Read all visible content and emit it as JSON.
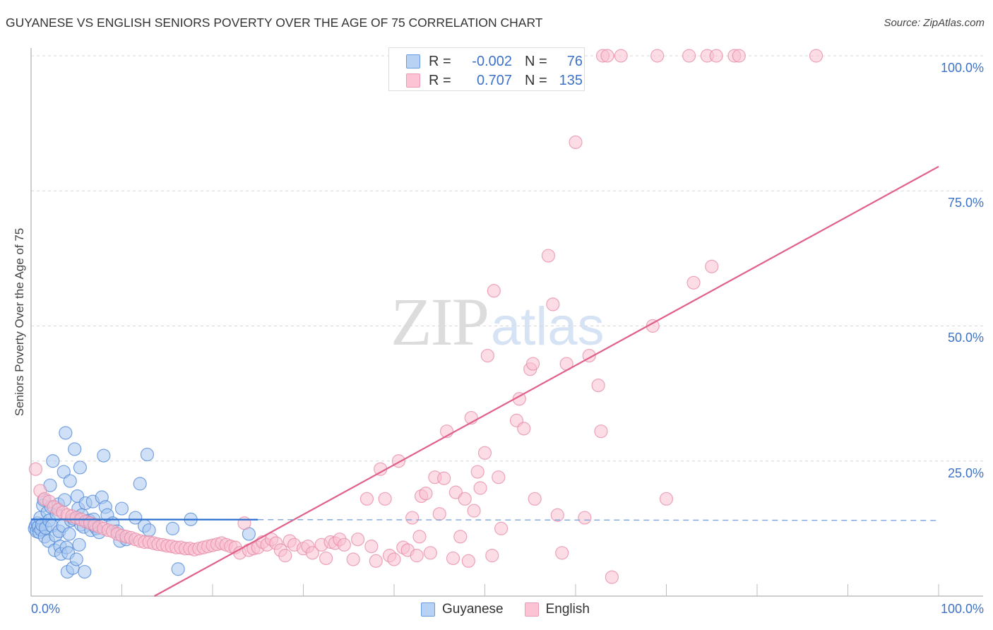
{
  "header": {
    "title": "GUYANESE VS ENGLISH SENIORS POVERTY OVER THE AGE OF 75 CORRELATION CHART",
    "source": "Source: ZipAtlas.com"
  },
  "axes": {
    "ylabel": "Seniors Poverty Over the Age of 75",
    "y_ticks": [
      "100.0%",
      "75.0%",
      "50.0%",
      "25.0%"
    ],
    "x_min_label": "0.0%",
    "x_max_label": "100.0%"
  },
  "legend_top": {
    "rows": [
      {
        "series": "Guyanese",
        "r_label": "R =",
        "r_value": "-0.002",
        "n_label": "N =",
        "n_value": "76"
      },
      {
        "series": "English",
        "r_label": "R =",
        "r_value": "0.707",
        "n_label": "N =",
        "n_value": "135"
      }
    ]
  },
  "legend_bottom": {
    "items": [
      {
        "label": "Guyanese"
      },
      {
        "label": "English"
      }
    ]
  },
  "watermark": {
    "zip": "ZIP",
    "atlas": "atlas"
  },
  "colors": {
    "guyanese_fill": "#a9c8f0",
    "guyanese_stroke": "#4f87d6",
    "guyanese_line": "#2b6fcf",
    "english_fill": "#f9c0d0",
    "english_stroke": "#e58aa6",
    "english_line": "#e0608a",
    "tick_label": "#3d72c9"
  },
  "chart_data": {
    "type": "scatter",
    "title": "GUYANESE VS ENGLISH SENIORS POVERTY OVER THE AGE OF 75 CORRELATION CHART",
    "xlabel": "",
    "ylabel": "Seniors Poverty Over the Age of 75",
    "xlim": [
      0,
      100
    ],
    "ylim": [
      0,
      100
    ],
    "x_tick_labels": [
      "0.0%",
      "100.0%"
    ],
    "y_tick_labels": [
      "25.0%",
      "50.0%",
      "75.0%",
      "100.0%"
    ],
    "grid": "horizontal dashed at 25/50/75/100",
    "legend_position": "top-center and bottom-center",
    "series": [
      {
        "name": "Guyanese",
        "R": -0.002,
        "N": 76,
        "trend": {
          "x0": 0,
          "y0": 14.2,
          "x1": 100,
          "y1": 14.0,
          "solid_until_x": 25
        },
        "points": [
          [
            0.4,
            12.5
          ],
          [
            0.5,
            13.0
          ],
          [
            0.6,
            12.0
          ],
          [
            0.7,
            13.5
          ],
          [
            0.8,
            12.8
          ],
          [
            0.9,
            11.8
          ],
          [
            1.0,
            14.5
          ],
          [
            1.1,
            12.3
          ],
          [
            1.2,
            13.2
          ],
          [
            1.3,
            16.8
          ],
          [
            1.4,
            17.8
          ],
          [
            1.5,
            11.0
          ],
          [
            1.6,
            12.6
          ],
          [
            1.8,
            15.5
          ],
          [
            1.9,
            10.2
          ],
          [
            2.0,
            14.0
          ],
          [
            2.1,
            20.5
          ],
          [
            2.2,
            16.5
          ],
          [
            2.3,
            13.0
          ],
          [
            2.4,
            25.0
          ],
          [
            2.6,
            8.5
          ],
          [
            2.7,
            11.2
          ],
          [
            2.8,
            15.2
          ],
          [
            3.0,
            17.0
          ],
          [
            3.1,
            12.0
          ],
          [
            3.2,
            9.2
          ],
          [
            3.3,
            7.8
          ],
          [
            3.5,
            13.0
          ],
          [
            3.6,
            23.0
          ],
          [
            3.7,
            17.8
          ],
          [
            3.8,
            30.2
          ],
          [
            3.9,
            9.0
          ],
          [
            4.0,
            4.5
          ],
          [
            4.1,
            8.0
          ],
          [
            4.2,
            11.5
          ],
          [
            4.3,
            21.3
          ],
          [
            4.4,
            14.0
          ],
          [
            4.6,
            5.2
          ],
          [
            4.7,
            14.3
          ],
          [
            4.8,
            27.2
          ],
          [
            5.0,
            6.8
          ],
          [
            5.1,
            18.5
          ],
          [
            5.2,
            16.2
          ],
          [
            5.3,
            9.5
          ],
          [
            5.4,
            23.8
          ],
          [
            5.5,
            13.2
          ],
          [
            5.6,
            15.0
          ],
          [
            5.8,
            12.8
          ],
          [
            5.9,
            4.5
          ],
          [
            6.0,
            17.2
          ],
          [
            6.2,
            13.8
          ],
          [
            6.4,
            14.0
          ],
          [
            6.6,
            12.2
          ],
          [
            6.8,
            17.5
          ],
          [
            6.9,
            14.2
          ],
          [
            7.0,
            13.0
          ],
          [
            7.2,
            12.5
          ],
          [
            7.5,
            11.8
          ],
          [
            7.8,
            18.3
          ],
          [
            8.0,
            26.0
          ],
          [
            8.2,
            16.5
          ],
          [
            8.4,
            15.0
          ],
          [
            9.0,
            13.5
          ],
          [
            9.5,
            12.0
          ],
          [
            9.8,
            10.2
          ],
          [
            10.0,
            16.2
          ],
          [
            10.5,
            10.5
          ],
          [
            11.5,
            14.5
          ],
          [
            12.0,
            20.8
          ],
          [
            12.8,
            26.2
          ],
          [
            12.5,
            13.0
          ],
          [
            13.0,
            12.2
          ],
          [
            15.6,
            12.5
          ],
          [
            16.2,
            5.0
          ],
          [
            17.6,
            14.2
          ],
          [
            24.0,
            11.5
          ]
        ]
      },
      {
        "name": "English",
        "R": 0.707,
        "N": 135,
        "trend": {
          "x0": 0,
          "y0": -12.5,
          "x1": 100,
          "y1": 79.5
        },
        "points": [
          [
            0.5,
            23.5
          ],
          [
            1.0,
            19.5
          ],
          [
            1.5,
            18.0
          ],
          [
            2.0,
            17.5
          ],
          [
            2.5,
            16.5
          ],
          [
            3.0,
            16.0
          ],
          [
            3.5,
            15.5
          ],
          [
            4.0,
            15.0
          ],
          [
            4.5,
            14.8
          ],
          [
            5.0,
            14.5
          ],
          [
            5.5,
            14.2
          ],
          [
            6.0,
            13.8
          ],
          [
            6.5,
            13.5
          ],
          [
            7.0,
            13.2
          ],
          [
            7.5,
            12.8
          ],
          [
            8.0,
            12.5
          ],
          [
            8.5,
            12.2
          ],
          [
            9.0,
            12.0
          ],
          [
            9.5,
            11.5
          ],
          [
            10.0,
            11.2
          ],
          [
            10.5,
            11.0
          ],
          [
            11.0,
            10.8
          ],
          [
            11.5,
            10.5
          ],
          [
            12.0,
            10.2
          ],
          [
            12.5,
            10.0
          ],
          [
            13.0,
            10.0
          ],
          [
            13.5,
            9.8
          ],
          [
            14.0,
            9.6
          ],
          [
            14.5,
            9.5
          ],
          [
            15.0,
            9.3
          ],
          [
            15.5,
            9.2
          ],
          [
            16.0,
            9.0
          ],
          [
            16.5,
            9.0
          ],
          [
            17.0,
            8.8
          ],
          [
            17.5,
            8.8
          ],
          [
            18.0,
            8.6
          ],
          [
            18.5,
            8.8
          ],
          [
            19.0,
            9.0
          ],
          [
            19.5,
            9.2
          ],
          [
            20.0,
            9.4
          ],
          [
            20.5,
            9.6
          ],
          [
            21.0,
            9.8
          ],
          [
            21.5,
            9.5
          ],
          [
            22.0,
            9.2
          ],
          [
            22.5,
            9.0
          ],
          [
            23.0,
            8.0
          ],
          [
            23.5,
            13.5
          ],
          [
            24.0,
            8.5
          ],
          [
            24.5,
            8.8
          ],
          [
            25.0,
            9.0
          ],
          [
            25.5,
            10.0
          ],
          [
            26.0,
            9.5
          ],
          [
            26.5,
            10.5
          ],
          [
            27.0,
            9.8
          ],
          [
            27.5,
            8.5
          ],
          [
            28.0,
            7.5
          ],
          [
            28.5,
            10.2
          ],
          [
            29.0,
            9.5
          ],
          [
            30.0,
            8.8
          ],
          [
            30.5,
            9.2
          ],
          [
            31.0,
            8.0
          ],
          [
            32.0,
            9.5
          ],
          [
            32.5,
            7.0
          ],
          [
            33.0,
            10.0
          ],
          [
            33.5,
            9.8
          ],
          [
            34.0,
            10.5
          ],
          [
            34.5,
            9.5
          ],
          [
            35.5,
            6.8
          ],
          [
            36.0,
            10.5
          ],
          [
            37.0,
            18.0
          ],
          [
            37.5,
            9.2
          ],
          [
            38.0,
            6.5
          ],
          [
            38.5,
            23.5
          ],
          [
            39.0,
            18.0
          ],
          [
            39.5,
            7.5
          ],
          [
            40.0,
            6.8
          ],
          [
            40.5,
            25.0
          ],
          [
            41.0,
            9.0
          ],
          [
            41.5,
            8.5
          ],
          [
            42.0,
            14.5
          ],
          [
            42.5,
            7.5
          ],
          [
            42.8,
            11.0
          ],
          [
            43.0,
            18.5
          ],
          [
            43.5,
            19.0
          ],
          [
            44.0,
            8.0
          ],
          [
            44.5,
            22.0
          ],
          [
            45.0,
            15.2
          ],
          [
            45.5,
            21.8
          ],
          [
            45.8,
            30.5
          ],
          [
            46.5,
            7.0
          ],
          [
            46.8,
            19.2
          ],
          [
            47.3,
            11.0
          ],
          [
            47.8,
            18.0
          ],
          [
            48.2,
            6.5
          ],
          [
            48.5,
            33.0
          ],
          [
            48.8,
            15.8
          ],
          [
            49.2,
            23.0
          ],
          [
            49.5,
            20.0
          ],
          [
            50.0,
            26.5
          ],
          [
            50.3,
            44.5
          ],
          [
            50.8,
            7.5
          ],
          [
            51.0,
            56.5
          ],
          [
            51.5,
            22.0
          ],
          [
            51.8,
            12.5
          ],
          [
            53.5,
            32.5
          ],
          [
            53.8,
            36.5
          ],
          [
            54.3,
            31.0
          ],
          [
            55.0,
            42.0
          ],
          [
            55.3,
            43.0
          ],
          [
            55.5,
            18.0
          ],
          [
            57.0,
            63.0
          ],
          [
            57.5,
            54.0
          ],
          [
            58.0,
            15.0
          ],
          [
            58.5,
            8.0
          ],
          [
            59.0,
            43.0
          ],
          [
            60.0,
            84.0
          ],
          [
            61.0,
            14.5
          ],
          [
            61.5,
            44.5
          ],
          [
            62.5,
            39.0
          ],
          [
            62.8,
            30.5
          ],
          [
            63.0,
            100.0
          ],
          [
            63.5,
            100.0
          ],
          [
            64.0,
            3.5
          ],
          [
            65.0,
            100.0
          ],
          [
            68.5,
            50.0
          ],
          [
            69.0,
            100.0
          ],
          [
            70.0,
            18.0
          ],
          [
            72.5,
            100.0
          ],
          [
            73.0,
            58.0
          ],
          [
            74.5,
            100.0
          ],
          [
            75.0,
            61.0
          ],
          [
            75.5,
            100.0
          ],
          [
            77.5,
            100.0
          ],
          [
            78.0,
            100.0
          ],
          [
            86.5,
            100.0
          ]
        ]
      }
    ]
  }
}
